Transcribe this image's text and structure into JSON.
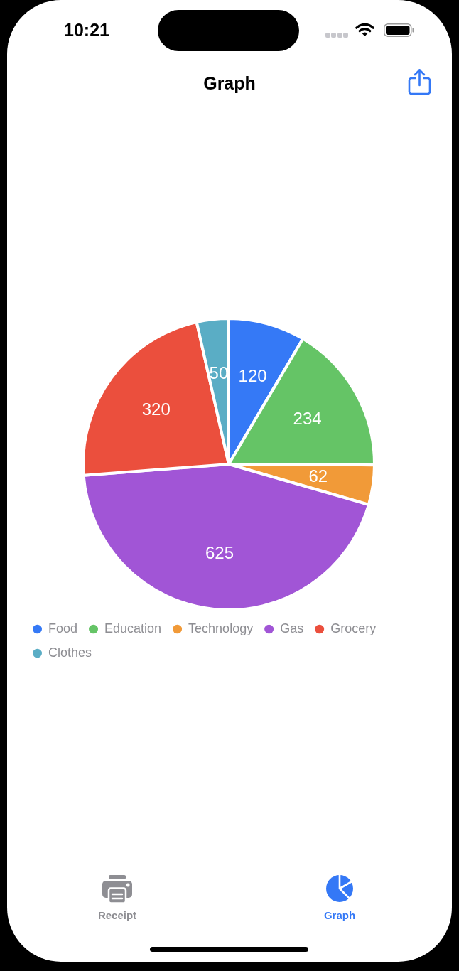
{
  "chart_data": {
    "type": "pie",
    "title": "Graph",
    "categories": [
      "Food",
      "Education",
      "Technology",
      "Gas",
      "Grocery",
      "Clothes"
    ],
    "values": [
      120,
      234,
      62,
      625,
      320,
      50
    ],
    "colors": [
      "#3579f6",
      "#65c466",
      "#f19a38",
      "#a155d6",
      "#eb4f3d",
      "#5aadc5"
    ],
    "data_labels": true,
    "legend": "bottom left",
    "annotations": [
      "10:21",
      "Receipt",
      "Graph"
    ]
  }
}
